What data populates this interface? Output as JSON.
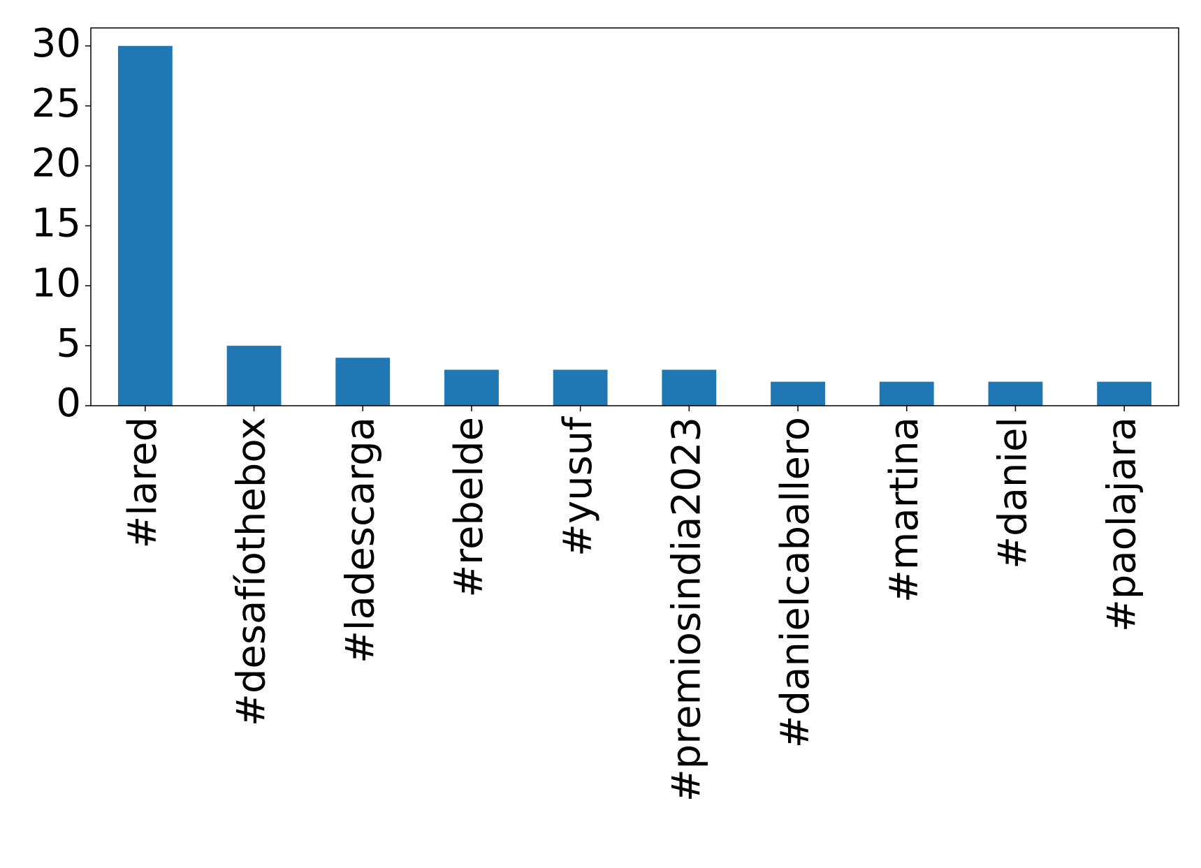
{
  "chart_data": {
    "type": "bar",
    "categories": [
      "#lared",
      "#desafíothebox",
      "#ladescarga",
      "#rebelde",
      "#yusuf",
      "#premiosindia2023",
      "#danielcaballero",
      "#martina",
      "#daniel",
      "#paolajara"
    ],
    "values": [
      30,
      5,
      4,
      3,
      3,
      3,
      2,
      2,
      2,
      2
    ],
    "color": "#1f77b4",
    "ylim": [
      0,
      31.5
    ],
    "yticks": [
      0,
      5,
      10,
      15,
      20,
      25,
      30
    ],
    "grid": false
  }
}
